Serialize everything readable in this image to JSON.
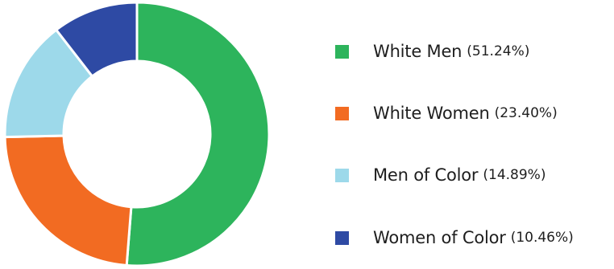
{
  "chart_data": {
    "type": "pie",
    "donut": true,
    "slices": [
      {
        "label": "White Men",
        "value": 51.24,
        "value_label": "(51.24%)",
        "color": "#2db45c"
      },
      {
        "label": "White Women",
        "value": 23.4,
        "value_label": "(23.40%)",
        "color": "#f26b22"
      },
      {
        "label": "Men of Color",
        "value": 14.89,
        "value_label": "(14.89%)",
        "color": "#9dd9ea"
      },
      {
        "label": "Women of Color",
        "value": 10.46,
        "value_label": "(10.46%)",
        "color": "#2e4aa4"
      }
    ],
    "start_angle_deg": 0,
    "direction": "clockwise",
    "legend_position": "right"
  }
}
